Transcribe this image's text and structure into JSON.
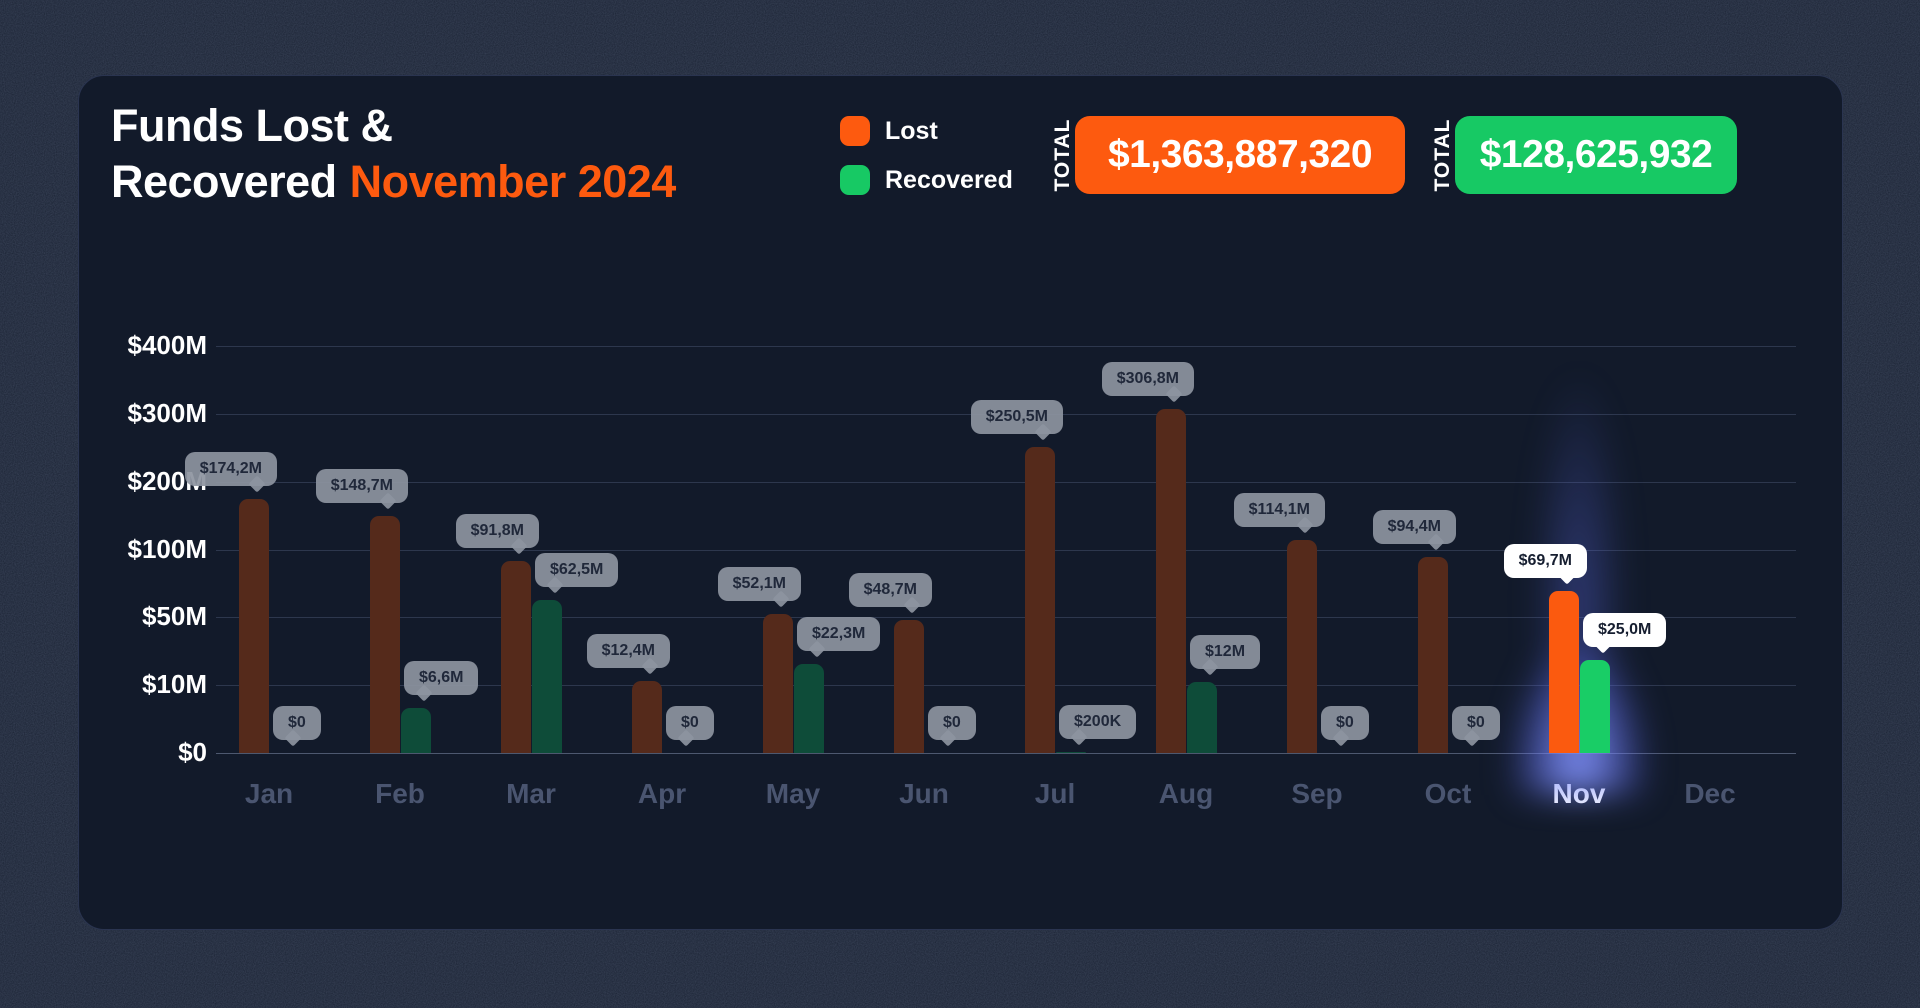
{
  "header": {
    "title_line1": "Funds Lost &",
    "title_line2_white": "Recovered",
    "title_line2_accent": "November 2024"
  },
  "legend": {
    "lost_label": "Lost",
    "recovered_label": "Recovered"
  },
  "totals": {
    "label": "TOTAL",
    "lost_total": "$1,363,887,320",
    "recovered_total": "$128,625,932"
  },
  "colors": {
    "accent_orange": "#fd5a0f",
    "accent_green": "#17c964",
    "bar_lost_muted": "#552a1b",
    "bar_recovered_muted": "#0e4c39",
    "bar_lost_highlight": "#fb5a0f",
    "bar_recovered_highlight": "#19cd66",
    "tooltip_gray": "#8d94a0",
    "tooltip_white": "#ffffff",
    "glow_blue": "#6f7dff"
  },
  "chart_data": {
    "type": "bar",
    "title": "Funds Lost & Recovered November 2024",
    "categories": [
      "Jan",
      "Feb",
      "Mar",
      "Apr",
      "May",
      "Jun",
      "Jul",
      "Aug",
      "Sep",
      "Oct",
      "Nov",
      "Dec"
    ],
    "unit": "USD millions",
    "series": [
      {
        "name": "Lost",
        "values": [
          174.2,
          148.7,
          91.8,
          12.4,
          52.1,
          48.7,
          250.5,
          306.8,
          114.1,
          94.4,
          69.7,
          null
        ],
        "labels": [
          "$174,2M",
          "$148,7M",
          "$91,8M",
          "$12,4M",
          "$52,1M",
          "$48,7M",
          "$250,5M",
          "$306,8M",
          "$114,1M",
          "$94,4M",
          "$69,7M",
          null
        ]
      },
      {
        "name": "Recovered",
        "values": [
          0,
          6.6,
          62.5,
          0,
          22.3,
          0,
          0.2,
          12,
          0,
          0,
          25.0,
          null
        ],
        "labels": [
          "$0",
          "$6,6M",
          "$62,5M",
          "$0",
          "$22,3M",
          "$0",
          "$200K",
          "$12M",
          "$0",
          "$0",
          "$25,0M",
          null
        ]
      }
    ],
    "y_axis": {
      "tick_values": [
        0,
        10,
        50,
        100,
        200,
        300,
        400
      ],
      "tick_labels": [
        "$0",
        "$10M",
        "$50M",
        "$100M",
        "$200M",
        "$300M",
        "$400M"
      ],
      "scale": "piecewise-linear-equal-tick-spacing",
      "grid": true
    },
    "highlight_month": "Nov",
    "legend_position": "top",
    "no_data_months": [
      "Dec"
    ]
  }
}
